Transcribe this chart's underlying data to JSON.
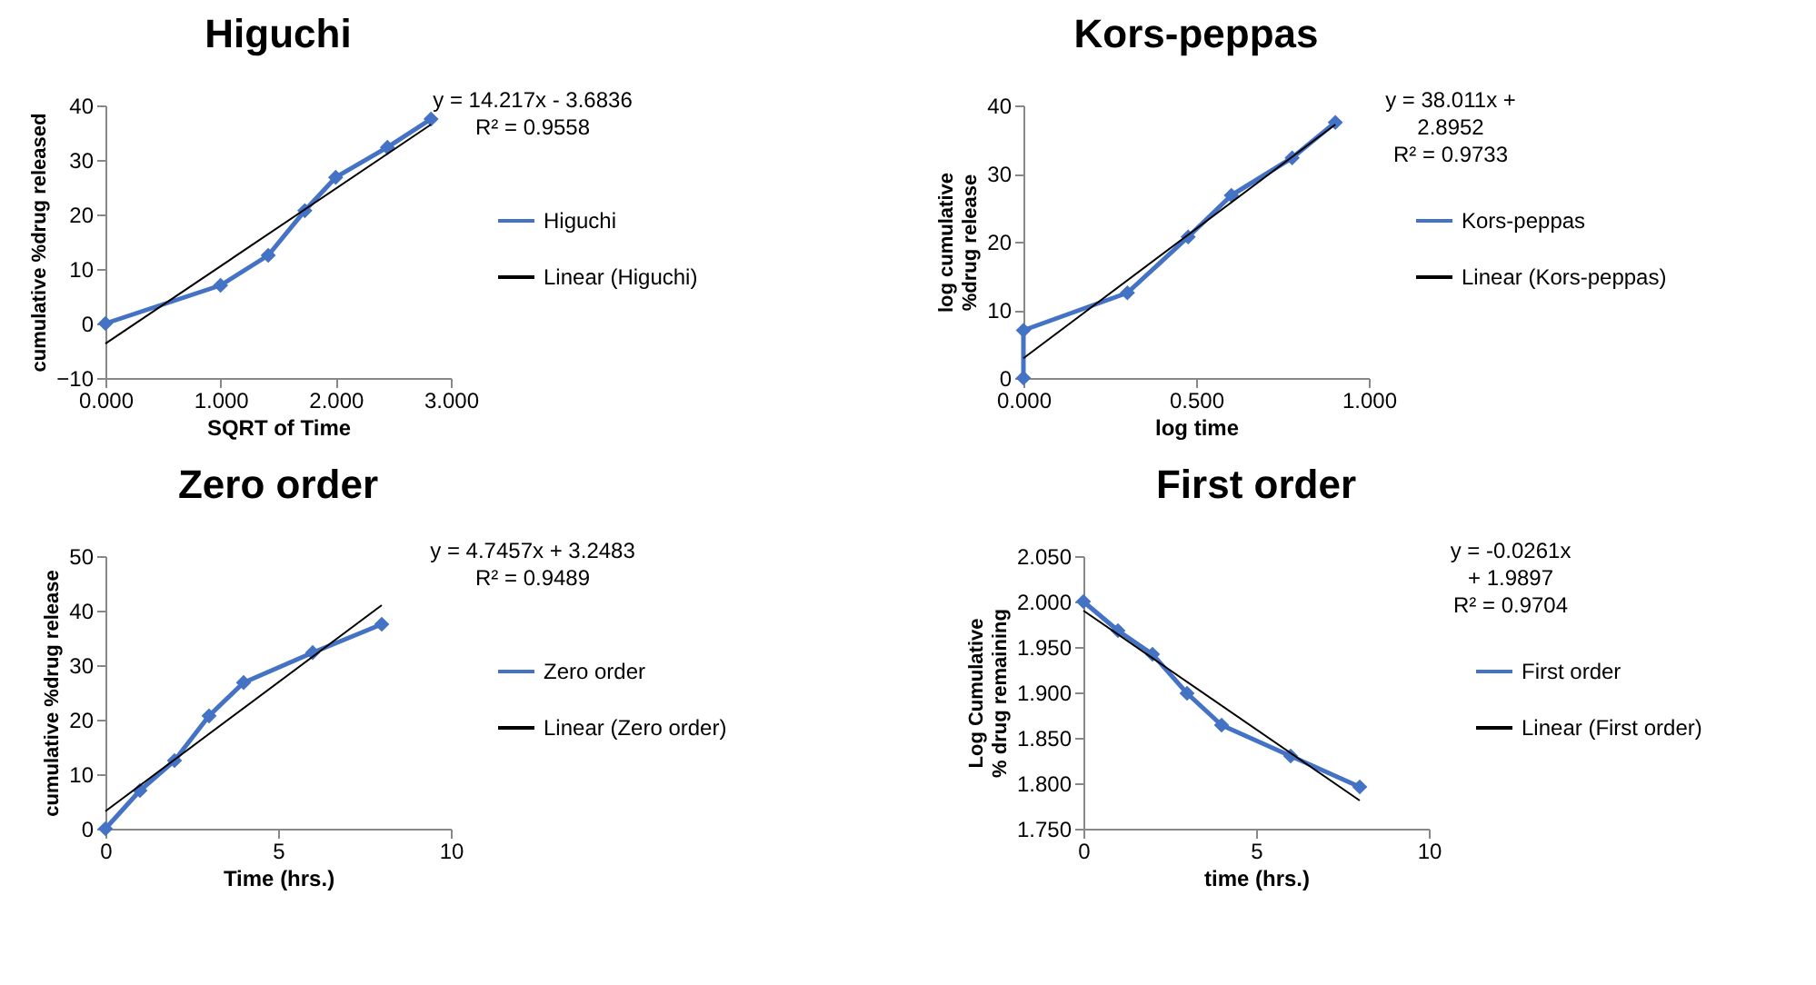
{
  "chart_data": [
    {
      "type": "line",
      "title": "Higuchi",
      "xlabel": "SQRT of Time",
      "ylabel": "cumulative %drug released",
      "xlim": [
        0,
        3
      ],
      "xticks": [
        {
          "value": 0,
          "label": "0.000"
        },
        {
          "value": 1,
          "label": "1.000"
        },
        {
          "value": 2,
          "label": "2.000"
        },
        {
          "value": 3,
          "label": "3.000"
        }
      ],
      "ylim": [
        -10,
        40
      ],
      "yticks": [
        -10,
        0,
        10,
        20,
        30,
        40
      ],
      "grid": false,
      "legend": "right",
      "annotations": [
        "y = 14.217x - 3.6836",
        "R² = 0.9558"
      ],
      "series": [
        {
          "name": "Higuchi",
          "color": "#4472c4",
          "marker": "diamond",
          "x": [
            0,
            1,
            1.414,
            1.732,
            2,
            2.449,
            2.828
          ],
          "values": [
            0,
            7,
            12.5,
            20.7,
            26.8,
            32.3,
            37.5
          ]
        },
        {
          "name": "Linear (Higuchi)",
          "color": "#000000",
          "marker": "none",
          "x": [
            0,
            2.828
          ],
          "values": [
            -3.7,
            36.5
          ]
        }
      ]
    },
    {
      "type": "line",
      "title": "Kors-peppas",
      "xlabel": "log time",
      "ylabel": "log cumulative %drug release",
      "xlim": [
        0,
        1
      ],
      "xticks": [
        {
          "value": 0,
          "label": "0.000"
        },
        {
          "value": 0.5,
          "label": "0.500"
        },
        {
          "value": 1,
          "label": "1.000"
        }
      ],
      "ylim": [
        0,
        40
      ],
      "yticks": [
        0,
        10,
        20,
        30,
        40
      ],
      "grid": false,
      "legend": "right",
      "annotations": [
        "y = 38.011x +",
        "2.8952",
        "R² = 0.9733"
      ],
      "series": [
        {
          "name": "Kors-peppas",
          "color": "#4472c4",
          "marker": "diamond",
          "x": [
            0,
            0,
            0.301,
            0.477,
            0.602,
            0.778,
            0.903
          ],
          "values": [
            0,
            7,
            12.5,
            20.7,
            26.8,
            32.3,
            37.5
          ]
        },
        {
          "name": "Linear (Kors-peppas)",
          "color": "#000000",
          "marker": "none",
          "x": [
            0,
            0.903
          ],
          "values": [
            2.9,
            37.2
          ]
        }
      ]
    },
    {
      "type": "line",
      "title": "Zero order",
      "xlabel": "Time (hrs.)",
      "ylabel": "cumulative %drug release",
      "xlim": [
        0,
        10
      ],
      "xticks": [
        0,
        5,
        10
      ],
      "ylim": [
        0,
        50
      ],
      "yticks": [
        0,
        10,
        20,
        30,
        40,
        50
      ],
      "grid": false,
      "legend": "right",
      "annotations": [
        "y = 4.7457x + 3.2483",
        "R² = 0.9489"
      ],
      "series": [
        {
          "name": "Zero order",
          "color": "#4472c4",
          "marker": "diamond",
          "x": [
            0,
            1,
            2,
            3,
            4,
            6,
            8
          ],
          "values": [
            0,
            7,
            12.5,
            20.7,
            26.8,
            32.3,
            37.5
          ]
        },
        {
          "name": "Linear (Zero order)",
          "color": "#000000",
          "marker": "none",
          "x": [
            0,
            8
          ],
          "values": [
            3.2,
            41
          ]
        }
      ]
    },
    {
      "type": "line",
      "title": "First order",
      "xlabel": "time (hrs.)",
      "ylabel": "Log Cumulative % drug remaining",
      "xlim": [
        0,
        10
      ],
      "xticks": [
        0,
        5,
        10
      ],
      "ylim": [
        1.75,
        2.05
      ],
      "yticks": [
        {
          "value": 1.75,
          "label": "1.750"
        },
        {
          "value": 1.8,
          "label": "1.800"
        },
        {
          "value": 1.85,
          "label": "1.850"
        },
        {
          "value": 1.9,
          "label": "1.900"
        },
        {
          "value": 1.95,
          "label": "1.950"
        },
        {
          "value": 2.0,
          "label": "2.000"
        },
        {
          "value": 2.05,
          "label": "2.050"
        }
      ],
      "grid": false,
      "legend": "right",
      "annotations": [
        "y = -0.0261x",
        "+ 1.9897",
        "R² = 0.9704"
      ],
      "series": [
        {
          "name": "First order",
          "color": "#4472c4",
          "marker": "diamond",
          "x": [
            0,
            1,
            2,
            3,
            4,
            6,
            8
          ],
          "values": [
            2.0,
            1.968,
            1.942,
            1.899,
            1.864,
            1.83,
            1.796
          ]
        },
        {
          "name": "Linear (First order)",
          "color": "#000000",
          "marker": "none",
          "x": [
            0,
            8
          ],
          "values": [
            1.99,
            1.781
          ]
        }
      ]
    }
  ]
}
